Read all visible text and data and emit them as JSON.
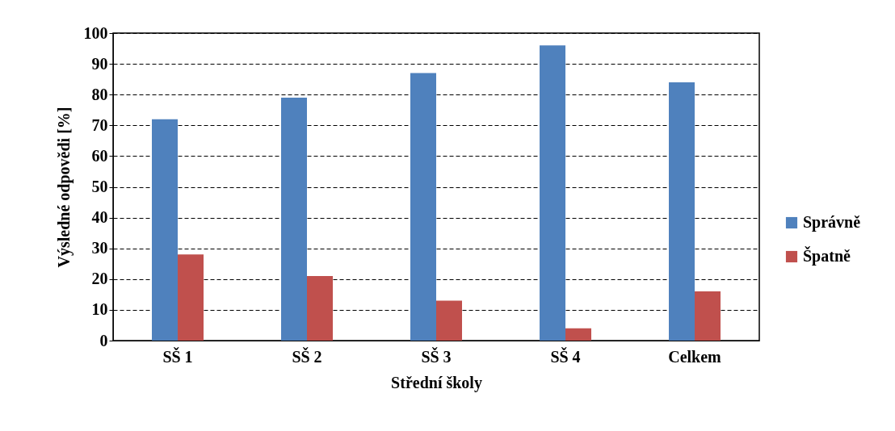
{
  "chart_data": {
    "type": "bar",
    "xlabel": "Střední školy",
    "ylabel": "Výsledné odpovědi [%]",
    "categories": [
      "SŠ 1",
      "SŠ 2",
      "SŠ 3",
      "SŠ 4",
      "Celkem"
    ],
    "series": [
      {
        "name": "Správně",
        "color": "#4f81bd",
        "values": [
          72,
          79,
          87,
          96,
          84
        ]
      },
      {
        "name": "Špatně",
        "color": "#c0504d",
        "values": [
          28,
          21,
          13,
          4,
          16
        ]
      }
    ],
    "ylim": [
      0,
      100
    ],
    "yticks": [
      0,
      10,
      20,
      30,
      40,
      50,
      60,
      70,
      80,
      90,
      100
    ],
    "grid": "y",
    "legend": "right"
  }
}
